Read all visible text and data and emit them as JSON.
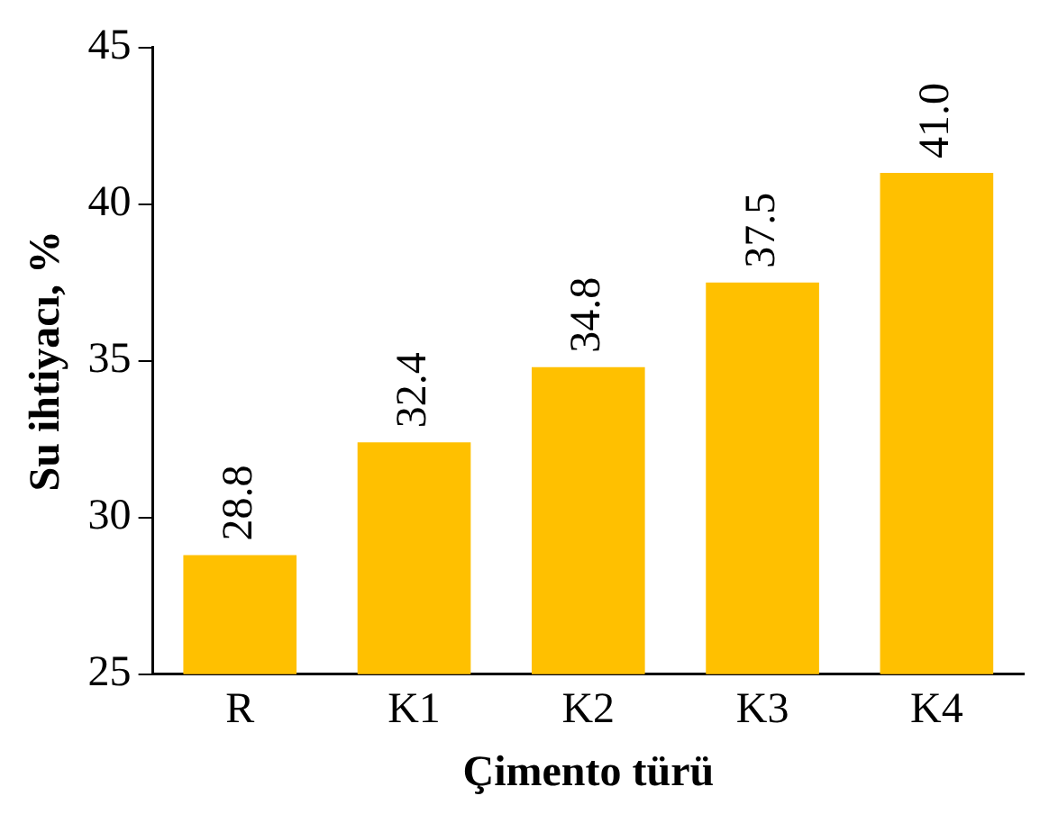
{
  "chart_data": {
    "type": "bar",
    "xlabel": "Çimento türü",
    "ylabel": "Su ihtiyacı, %",
    "categories": [
      "R",
      "K1",
      "K2",
      "K3",
      "K4"
    ],
    "values": [
      28.8,
      32.4,
      34.8,
      37.5,
      41.0
    ],
    "value_labels": [
      "28.8",
      "32.4",
      "34.8",
      "37.5",
      "41.0"
    ],
    "color": "#ffc000",
    "ylim": [
      25,
      45
    ],
    "yticks": [
      25,
      30,
      35,
      40,
      45
    ],
    "grid": false,
    "legend": false
  }
}
